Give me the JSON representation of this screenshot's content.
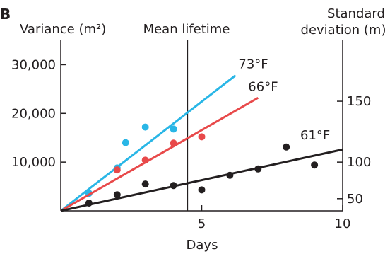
{
  "chart_data": {
    "type": "scatter",
    "panel_label": "B",
    "xlabel": "Days",
    "ylabel_left": "Variance (m²)",
    "ylabel_right": [
      "Standard",
      "deviation (m)"
    ],
    "xlim": [
      0,
      10
    ],
    "ylim": [
      0,
      35000
    ],
    "x_ticks": [
      {
        "value": 5,
        "label": "5"
      },
      {
        "value": 10,
        "label": "10"
      }
    ],
    "y_ticks_left": [
      {
        "value": 10000,
        "label": "10,000"
      },
      {
        "value": 20000,
        "label": "20,000"
      },
      {
        "value": 30000,
        "label": "30,000"
      }
    ],
    "y_ticks_right": [
      {
        "value": 50,
        "label": "50"
      },
      {
        "value": 100,
        "label": "100"
      },
      {
        "value": 150,
        "label": "150"
      }
    ],
    "annotations": [
      {
        "text": "Mean lifetime",
        "x": 4.5
      }
    ],
    "series": [
      {
        "name": "73°F",
        "color": "#29b6e6",
        "points": [
          [
            1,
            3600
          ],
          [
            2,
            8800
          ],
          [
            2.3,
            14000
          ],
          [
            3,
            17200
          ],
          [
            4,
            16800
          ]
        ],
        "fit": [
          [
            0,
            0
          ],
          [
            6.2,
            27800
          ]
        ]
      },
      {
        "name": "66°F",
        "color": "#e8494a",
        "points": [
          [
            2,
            8400
          ],
          [
            3,
            10400
          ],
          [
            4,
            13900
          ],
          [
            5,
            15200
          ]
        ],
        "fit": [
          [
            0,
            0
          ],
          [
            7,
            23200
          ]
        ]
      },
      {
        "name": "61°F",
        "color": "#231f20",
        "points": [
          [
            1,
            1600
          ],
          [
            2,
            3300
          ],
          [
            3,
            5500
          ],
          [
            4,
            5200
          ],
          [
            5,
            4300
          ],
          [
            6,
            7300
          ],
          [
            7,
            8600
          ],
          [
            8,
            13100
          ],
          [
            9,
            9400
          ]
        ],
        "fit": [
          [
            0,
            0
          ],
          [
            10,
            12600
          ]
        ]
      }
    ]
  }
}
